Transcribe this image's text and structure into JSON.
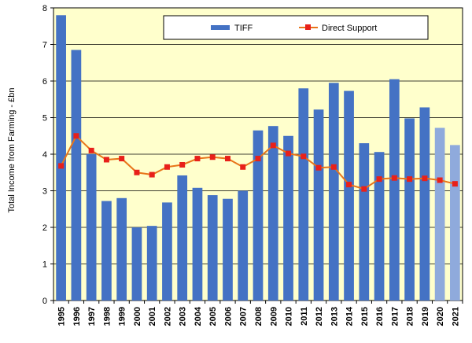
{
  "chart_data": {
    "type": "bar",
    "categories": [
      "1995",
      "1996",
      "1997",
      "1998",
      "1999",
      "2000",
      "2001",
      "2002",
      "2003",
      "2004",
      "2005",
      "2006",
      "2007",
      "2008",
      "2009",
      "2010",
      "2011",
      "2012",
      "2013",
      "2014",
      "2015",
      "2016",
      "2017",
      "2018",
      "2019",
      "2020",
      "2021"
    ],
    "series": [
      {
        "name": "TIFF",
        "kind": "bar",
        "color": "#4472c4",
        "light_color": "#8faadc",
        "light_from_category": "2020",
        "values": [
          7.8,
          6.85,
          4.0,
          2.72,
          2.8,
          2.0,
          2.04,
          2.68,
          3.42,
          3.08,
          2.88,
          2.78,
          3.0,
          4.65,
          4.77,
          4.5,
          5.8,
          5.22,
          5.95,
          5.73,
          4.3,
          4.06,
          6.05,
          4.98,
          5.28,
          4.72,
          4.25
        ]
      },
      {
        "name": "Direct Support",
        "kind": "line",
        "color": "#e8751a",
        "marker_color": "#e8201a",
        "values": [
          3.68,
          4.5,
          4.1,
          3.85,
          3.88,
          3.5,
          3.44,
          3.65,
          3.71,
          3.88,
          3.92,
          3.88,
          3.65,
          3.88,
          4.24,
          4.02,
          3.94,
          3.63,
          3.65,
          3.17,
          3.05,
          3.32,
          3.35,
          3.32,
          3.34,
          3.29,
          3.19
        ]
      }
    ],
    "ylabel": "Total Income from Farming - £bn",
    "xlabel": "",
    "ylim": [
      0,
      8
    ],
    "yticks": [
      0,
      1,
      2,
      3,
      4,
      5,
      6,
      7,
      8
    ],
    "grid": true,
    "legend_position": "top-right",
    "plot_background": "#ffffcc"
  }
}
